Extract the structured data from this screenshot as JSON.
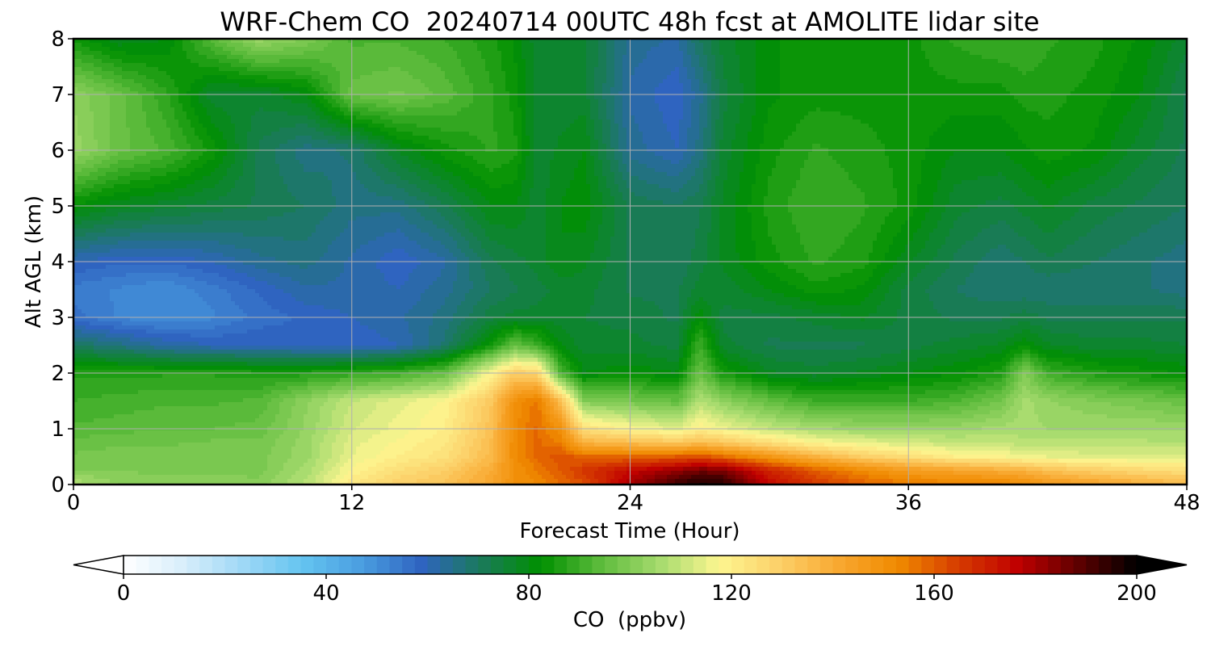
{
  "chart_data": {
    "type": "heatmap",
    "plot_kind": "filled contour (time-height cross section)",
    "title": "WRF-Chem CO  20240714 00UTC 48h fcst at AMOLITE lidar site",
    "xlabel": "Forecast Time (Hour)",
    "ylabel": "Alt AGL (km)",
    "xlim": [
      0,
      48
    ],
    "ylim": [
      0,
      8
    ],
    "x_ticks": [
      0,
      12,
      24,
      36,
      48
    ],
    "y_ticks": [
      0,
      1,
      2,
      3,
      4,
      5,
      6,
      7,
      8
    ],
    "grid": true,
    "colorbar": {
      "label": "CO  (ppbv)",
      "orientation": "horizontal",
      "placement": "bottom",
      "range": [
        0,
        200
      ],
      "ticks": [
        0,
        40,
        80,
        120,
        160,
        200
      ],
      "extend": "both",
      "colors": [
        "#ffffff",
        "#d8eefb",
        "#9fd8f6",
        "#64c4f0",
        "#4a9de0",
        "#2f64c0",
        "#1a7a5a",
        "#009000",
        "#5dbb3c",
        "#a6db6e",
        "#fdf690",
        "#fcd069",
        "#f8a830",
        "#f08a00",
        "#d63c00",
        "#c00000",
        "#600000",
        "#000000"
      ]
    },
    "x": [
      0,
      2,
      4,
      6,
      8,
      10,
      12,
      14,
      16,
      18,
      19,
      20,
      21,
      22,
      24,
      26,
      27,
      28,
      30,
      32,
      34,
      36,
      38,
      40,
      41,
      42,
      44,
      46,
      48
    ],
    "y": [
      0,
      0.25,
      0.5,
      0.75,
      1,
      1.5,
      2,
      2.5,
      3,
      3.5,
      4,
      5,
      6,
      7,
      8
    ],
    "z_units": "ppbv",
    "z": [
      [
        108,
        102,
        102,
        102,
        101,
        108,
        122,
        130,
        133,
        142,
        150,
        152,
        158,
        162,
        180,
        193,
        198,
        196,
        175,
        166,
        160,
        156,
        155,
        155,
        152,
        148,
        144,
        140,
        136
      ],
      [
        100,
        100,
        99,
        99,
        99,
        106,
        118,
        125,
        130,
        140,
        150,
        155,
        160,
        166,
        175,
        182,
        186,
        185,
        170,
        160,
        152,
        146,
        143,
        140,
        138,
        134,
        130,
        127,
        125
      ],
      [
        98,
        99,
        99,
        99,
        99,
        104,
        115,
        120,
        124,
        136,
        152,
        158,
        162,
        158,
        158,
        160,
        162,
        158,
        148,
        138,
        130,
        125,
        120,
        118,
        116,
        115,
        114,
        113,
        113
      ],
      [
        96,
        97,
        97,
        98,
        98,
        104,
        114,
        118,
        122,
        135,
        152,
        158,
        155,
        138,
        135,
        132,
        135,
        132,
        125,
        118,
        115,
        112,
        110,
        110,
        108,
        108,
        108,
        108,
        108
      ],
      [
        93,
        94,
        95,
        95,
        96,
        103,
        112,
        116,
        120,
        134,
        152,
        158,
        150,
        125,
        118,
        114,
        120,
        116,
        110,
        106,
        104,
        104,
        104,
        106,
        106,
        105,
        105,
        105,
        104
      ],
      [
        90,
        91,
        92,
        92,
        93,
        102,
        110,
        114,
        118,
        132,
        150,
        156,
        135,
        100,
        98,
        95,
        108,
        102,
        95,
        90,
        90,
        90,
        92,
        98,
        106,
        103,
        100,
        98,
        96
      ],
      [
        87,
        87,
        87,
        87,
        86,
        86,
        88,
        90,
        95,
        118,
        130,
        128,
        92,
        80,
        82,
        80,
        96,
        85,
        78,
        76,
        78,
        80,
        82,
        86,
        100,
        90,
        86,
        84,
        82
      ],
      [
        70,
        66,
        62,
        60,
        60,
        58,
        58,
        60,
        68,
        84,
        95,
        90,
        80,
        76,
        76,
        74,
        90,
        76,
        72,
        72,
        72,
        74,
        76,
        78,
        82,
        78,
        76,
        76,
        75
      ],
      [
        56,
        52,
        50,
        52,
        56,
        58,
        60,
        62,
        66,
        74,
        76,
        76,
        76,
        75,
        74,
        72,
        82,
        74,
        74,
        76,
        78,
        74,
        72,
        72,
        74,
        72,
        72,
        72,
        72
      ],
      [
        54,
        52,
        50,
        54,
        58,
        62,
        62,
        60,
        64,
        70,
        72,
        74,
        76,
        76,
        72,
        72,
        76,
        76,
        80,
        84,
        82,
        74,
        70,
        68,
        68,
        68,
        68,
        68,
        66
      ],
      [
        60,
        58,
        58,
        60,
        64,
        66,
        62,
        58,
        62,
        72,
        74,
        76,
        80,
        78,
        72,
        70,
        74,
        78,
        84,
        88,
        86,
        78,
        72,
        68,
        70,
        72,
        70,
        68,
        66
      ],
      [
        82,
        78,
        76,
        74,
        72,
        70,
        66,
        66,
        72,
        80,
        80,
        76,
        80,
        82,
        72,
        70,
        72,
        78,
        86,
        90,
        88,
        84,
        76,
        74,
        76,
        78,
        74,
        72,
        70
      ],
      [
        104,
        96,
        92,
        84,
        72,
        66,
        68,
        78,
        84,
        88,
        86,
        76,
        78,
        80,
        64,
        60,
        66,
        76,
        84,
        88,
        86,
        84,
        80,
        80,
        82,
        84,
        82,
        76,
        72
      ],
      [
        102,
        96,
        88,
        76,
        76,
        80,
        96,
        98,
        94,
        88,
        84,
        76,
        76,
        76,
        62,
        58,
        64,
        74,
        82,
        84,
        84,
        84,
        84,
        84,
        86,
        86,
        84,
        80,
        72
      ],
      [
        84,
        78,
        80,
        94,
        104,
        100,
        92,
        92,
        90,
        86,
        82,
        76,
        76,
        76,
        64,
        62,
        70,
        76,
        82,
        84,
        84,
        84,
        88,
        90,
        90,
        88,
        86,
        82,
        76
      ]
    ]
  }
}
